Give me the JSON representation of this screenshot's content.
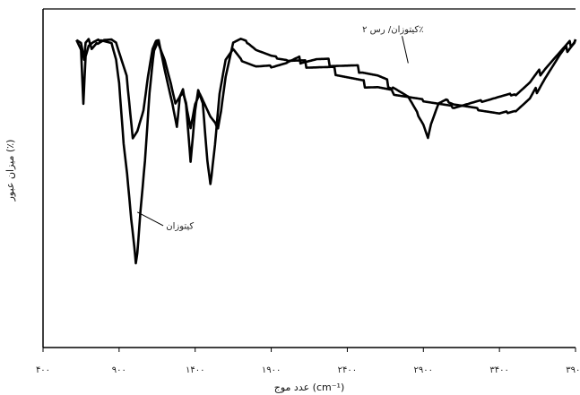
{
  "chart_data": {
    "type": "line",
    "title": "",
    "xlabel": "عدد موج (cm⁻¹)",
    "ylabel": "میزان عبور (٪)",
    "xlim": [
      400,
      3900
    ],
    "ylim": [
      0,
      100
    ],
    "x_ticks": [
      400,
      900,
      1400,
      1900,
      2400,
      2900,
      3400,
      3900
    ],
    "x_tick_labels": [
      "۴۰۰",
      "۹۰۰",
      "۱۴۰۰",
      "۱۹۰۰",
      "۲۴۰۰",
      "۲۹۰۰",
      "۳۴۰۰",
      "۳۹۰۰"
    ],
    "grid": false,
    "legend": "none",
    "line_color": "#000000",
    "annotations": [
      {
        "text": "کیتوزان/ رس ۲٪",
        "points_to_series": "chitosan_clay"
      },
      {
        "text": "کیتوزان",
        "points_to_series": "chitosan"
      }
    ],
    "series": [
      {
        "id": "chitosan_clay",
        "x": [
          620,
          650,
          670,
          680,
          700,
          720,
          760,
          800,
          850,
          880,
          900,
          950,
          990,
          1020,
          1060,
          1090,
          1120,
          1150,
          1200,
          1240,
          1270,
          1300,
          1320,
          1340,
          1370,
          1400,
          1430,
          1460,
          1500,
          1550,
          1570,
          1600,
          1650,
          1700,
          1750,
          1800,
          1900,
          2000,
          2100,
          2200,
          2300,
          2400,
          2500,
          2600,
          2700,
          2800,
          2900,
          3000,
          3100,
          3200,
          3300,
          3400,
          3500,
          3600,
          3700,
          3800,
          3900
        ],
        "y": [
          91,
          90,
          85,
          90,
          91,
          88,
          90,
          91,
          91,
          90,
          87,
          80,
          62,
          64,
          70,
          80,
          88,
          91,
          85,
          78,
          72,
          74,
          75,
          72,
          65,
          72,
          75,
          72,
          68,
          65,
          70,
          80,
          90,
          91,
          90,
          88,
          86,
          85,
          84,
          83,
          82,
          80,
          78,
          77,
          75,
          74,
          73,
          72,
          71,
          72,
          73,
          74,
          75,
          78,
          83,
          87,
          91
        ]
      },
      {
        "id": "chitosan",
        "x": [
          620,
          650,
          665,
          680,
          700,
          730,
          780,
          850,
          880,
          900,
          930,
          960,
          980,
          1000,
          1010,
          1020,
          1040,
          1070,
          1100,
          1130,
          1160,
          1200,
          1250,
          1280,
          1300,
          1320,
          1340,
          1370,
          1400,
          1420,
          1450,
          1480,
          1500,
          1530,
          1560,
          1600,
          1650,
          1700,
          1800,
          1900,
          2000,
          2100,
          2200,
          2300,
          2400,
          2500,
          2600,
          2700,
          2800,
          2850,
          2900,
          2930,
          2950,
          3000,
          3050,
          3100,
          3200,
          3300,
          3400,
          3500,
          3600,
          3700,
          3800,
          3900
        ],
        "y": [
          91,
          88,
          72,
          86,
          89,
          90,
          91,
          90,
          85,
          78,
          60,
          48,
          38,
          30,
          25,
          28,
          40,
          55,
          75,
          88,
          91,
          82,
          72,
          65,
          74,
          76,
          72,
          55,
          70,
          76,
          72,
          55,
          48,
          60,
          75,
          85,
          88,
          85,
          83,
          83,
          84,
          85,
          85,
          84,
          83,
          82,
          80,
          77,
          74,
          70,
          66,
          62,
          66,
          72,
          73,
          72,
          71,
          70,
          69,
          70,
          73,
          80,
          86,
          91
        ]
      }
    ]
  }
}
